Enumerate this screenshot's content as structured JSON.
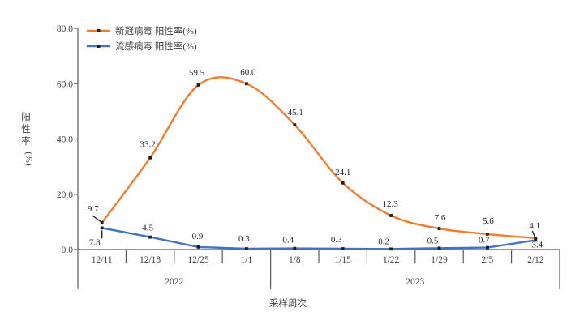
{
  "chart_data": {
    "type": "line",
    "x_axis_title": "采样周次",
    "y_axis_title": "阳性率(%)",
    "y_axis_title_chars": [
      "阳",
      "性",
      "率"
    ],
    "y_axis_title_unit": "(%)",
    "categories": [
      "12/11",
      "12/18",
      "12/25",
      "1/1",
      "1/8",
      "1/15",
      "1/22",
      "1/29",
      "2/5",
      "2/12"
    ],
    "year_groups": [
      {
        "label": "2022",
        "from": 0,
        "to": 3
      },
      {
        "label": "2023",
        "from": 4,
        "to": 9
      }
    ],
    "ylim": [
      0,
      80
    ],
    "ytick_labels": [
      "0.0",
      "20.0",
      "40.0",
      "60.0",
      "80.0"
    ],
    "grid": false,
    "legend_position": "top-left-inside",
    "series": [
      {
        "id": "covid",
        "name": "新冠病毒 阳性率(%)",
        "color": "#ED7D31",
        "smooth": true,
        "values": [
          9.7,
          33.2,
          59.5,
          60.0,
          45.1,
          24.1,
          12.3,
          7.6,
          5.6,
          4.1
        ],
        "labels": [
          "9.7",
          "33.2",
          "59.5",
          "60.0",
          "45.1",
          "24.1",
          "12.3",
          "7.6",
          "5.6",
          "4.1"
        ]
      },
      {
        "id": "flu",
        "name": "流感病毒 阳性率(%)",
        "color": "#4472C4",
        "smooth": false,
        "values": [
          7.8,
          4.5,
          0.9,
          0.3,
          0.4,
          0.3,
          0.2,
          0.5,
          0.7,
          3.4
        ],
        "labels": [
          "7.8",
          "4.5",
          "0.9",
          "0.3",
          "0.4",
          "0.3",
          "0.2",
          "0.5",
          "0.7",
          "3.4"
        ]
      }
    ],
    "colors": {
      "marker": "#1f1f1f",
      "axis": "#595959",
      "axis_text": "#404040",
      "data_label": "#262626",
      "background": "#ffffff"
    }
  }
}
